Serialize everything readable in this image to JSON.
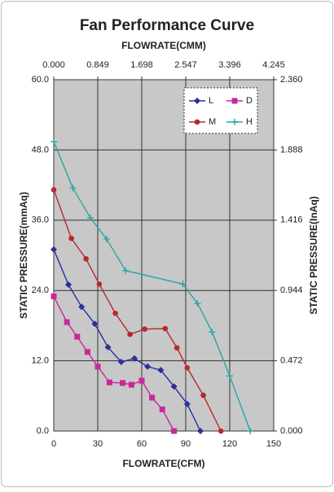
{
  "chart_data": {
    "type": "line",
    "title": "Fan Performance Curve",
    "xlabel": "FLOWRATE(CFM)",
    "x2label": "FLOWRATE(CMM)",
    "ylabel": "STATIC PRESSURE(mmAq)",
    "y2label": "STATIC PRESSURE(InAq)",
    "xlim": [
      0,
      150
    ],
    "xticks": [
      0,
      30,
      60,
      90,
      120,
      150
    ],
    "ylim": [
      0,
      60
    ],
    "yticks": [
      {
        "value": 0,
        "label": "0.0"
      },
      {
        "value": 12,
        "label": "12.0"
      },
      {
        "value": 24,
        "label": "24.0"
      },
      {
        "value": 36,
        "label": "36.0"
      },
      {
        "value": 48,
        "label": "48.0"
      },
      {
        "value": 60,
        "label": "60.0"
      }
    ],
    "x2lim": [
      0,
      4.245
    ],
    "x2ticks": [
      {
        "value": 0,
        "label": "0.000"
      },
      {
        "value": 0.849,
        "label": "0.849"
      },
      {
        "value": 1.698,
        "label": "1.698"
      },
      {
        "value": 2.547,
        "label": "2.547"
      },
      {
        "value": 3.396,
        "label": "3.396"
      },
      {
        "value": 4.245,
        "label": "4.245"
      }
    ],
    "y2lim": [
      0,
      2.36
    ],
    "y2ticks": [
      {
        "value": 0,
        "label": "0.000"
      },
      {
        "value": 0.472,
        "label": "0.472"
      },
      {
        "value": 0.944,
        "label": "0.944"
      },
      {
        "value": 1.416,
        "label": "1.416"
      },
      {
        "value": 1.888,
        "label": "1.888"
      },
      {
        "value": 2.36,
        "label": "2.360"
      }
    ],
    "grid": true,
    "legend": "upper right",
    "series": [
      {
        "name": "L",
        "color": "#2b2f9e",
        "marker": "diamond",
        "x": [
          0,
          10,
          19,
          28,
          37,
          46,
          55,
          64,
          73,
          82,
          91,
          100
        ],
        "values": [
          31,
          25,
          21.2,
          18.3,
          14.3,
          11.8,
          12.4,
          11,
          10.4,
          7.6,
          4.6,
          0
        ]
      },
      {
        "name": "D",
        "color": "#c8289a",
        "marker": "square",
        "x": [
          0,
          9,
          16,
          23,
          30,
          38,
          47,
          53,
          60,
          67,
          74,
          82
        ],
        "values": [
          23,
          18.6,
          16.1,
          13.5,
          11,
          8.3,
          8.2,
          7.9,
          8.6,
          5.7,
          3.7,
          0
        ]
      },
      {
        "name": "M",
        "color": "#b8282c",
        "marker": "circle",
        "x": [
          0,
          12,
          22,
          31,
          42,
          52,
          62,
          76,
          84,
          91,
          102,
          114
        ],
        "values": [
          41.2,
          32.9,
          29.4,
          25.1,
          20.1,
          16.5,
          17.4,
          17.5,
          14.2,
          10.8,
          6.1,
          0
        ]
      },
      {
        "name": "H",
        "color": "#2aa5a5",
        "marker": "plus",
        "x": [
          0,
          13,
          25,
          36,
          49,
          88,
          98,
          108,
          120,
          134
        ],
        "values": [
          49.4,
          41.5,
          36.4,
          32.8,
          27.4,
          25.1,
          21.8,
          16.9,
          9.4,
          0
        ]
      }
    ]
  }
}
